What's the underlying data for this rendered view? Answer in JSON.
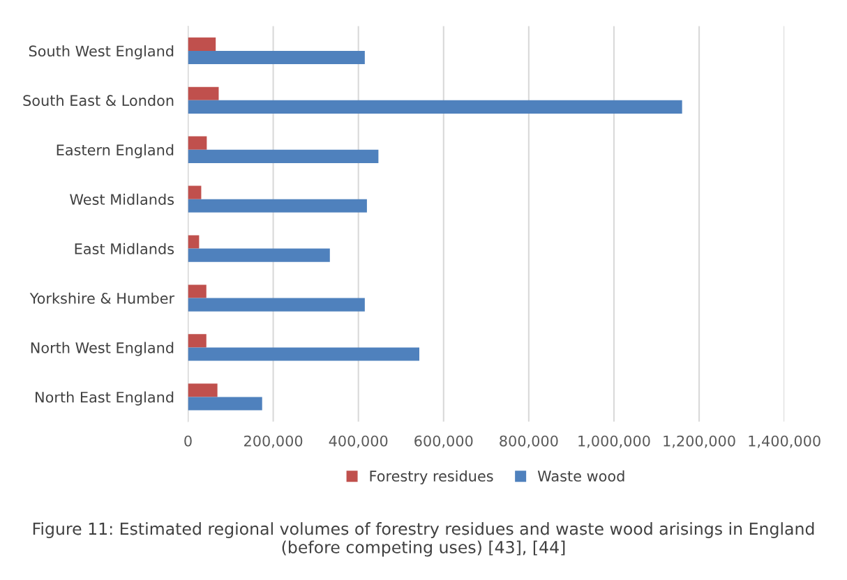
{
  "chart_data": {
    "type": "bar",
    "orientation": "horizontal",
    "categories": [
      "South West England",
      "South East & London",
      "Eastern England",
      "West Midlands",
      "East Midlands",
      "Yorkshire & Humber",
      "North West England",
      "North East England"
    ],
    "series": [
      {
        "name": "Forestry residues",
        "color": "#c0504d",
        "values": [
          65000,
          72000,
          44000,
          31000,
          26000,
          43000,
          43000,
          69000
        ]
      },
      {
        "name": "Waste wood",
        "color": "#4f81bd",
        "values": [
          415000,
          1160000,
          447000,
          420000,
          333000,
          415000,
          543000,
          174000
        ]
      }
    ],
    "xlim": [
      0,
      1400000
    ],
    "xticks": [
      {
        "value": 0,
        "label": "0"
      },
      {
        "value": 200000,
        "label": "200,000"
      },
      {
        "value": 400000,
        "label": "400,000"
      },
      {
        "value": 600000,
        "label": "600,000"
      },
      {
        "value": 800000,
        "label": "800,000"
      },
      {
        "value": 1000000,
        "label": "1,000,000"
      },
      {
        "value": 1200000,
        "label": "1,200,000"
      },
      {
        "value": 1400000,
        "label": "1,400,000"
      }
    ],
    "grid": "x",
    "legend": "bottom",
    "annotations": [
      "Figure 11: Estimated regional volumes of forestry residues and waste wood arisings in England (before competing uses) [43], [44]"
    ]
  }
}
